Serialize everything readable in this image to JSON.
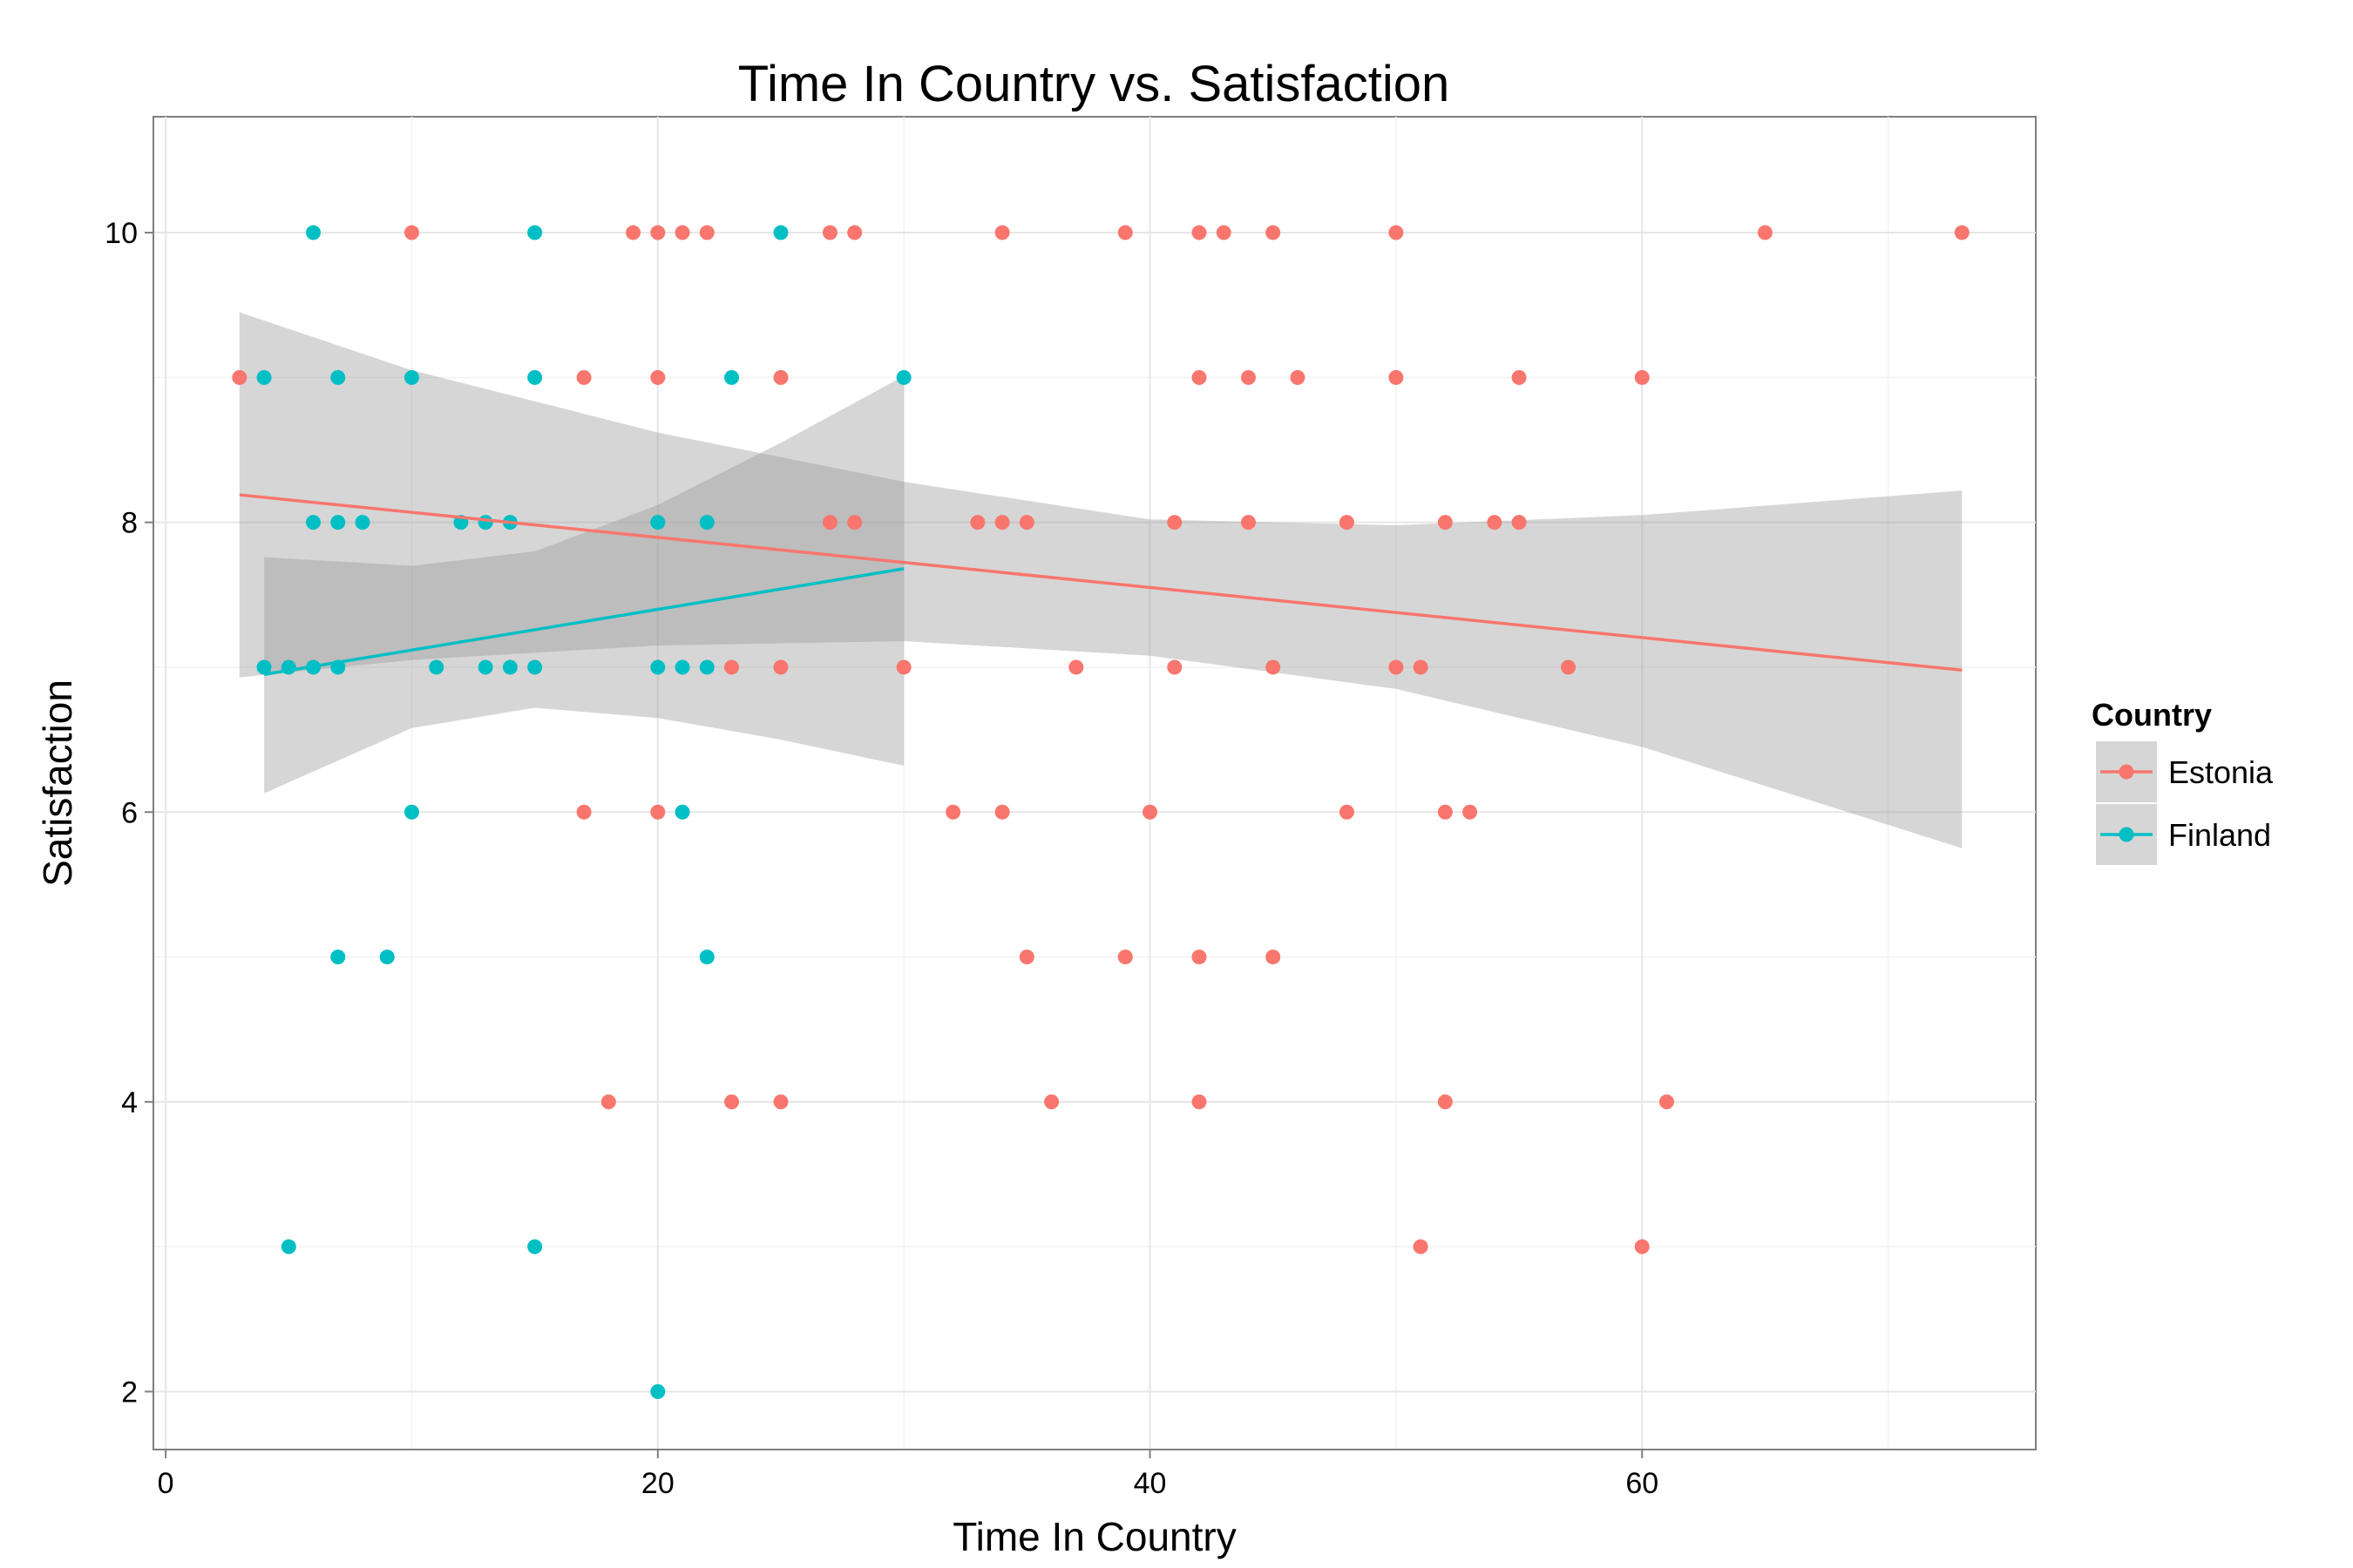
{
  "chart_data": {
    "type": "scatter",
    "title": "Time In Country vs. Satisfaction",
    "xlabel": "Time In Country",
    "ylabel": "Satisfaction",
    "xlim": [
      -0.5,
      76
    ],
    "ylim": [
      1.6,
      10.8
    ],
    "x_ticks": [
      0,
      20,
      40,
      60
    ],
    "y_ticks": [
      2,
      4,
      6,
      8,
      10
    ],
    "x_minor": [
      10,
      30,
      50,
      70
    ],
    "y_minor": [
      3,
      5,
      7,
      9
    ],
    "grid": true,
    "legend": {
      "title": "Country",
      "position": "right"
    },
    "series": [
      {
        "name": "Estonia",
        "color": "#F8766D",
        "points": [
          [
            3,
            9
          ],
          [
            10,
            10
          ],
          [
            17,
            9
          ],
          [
            20,
            9
          ],
          [
            19,
            10
          ],
          [
            20,
            10
          ],
          [
            21,
            10
          ],
          [
            22,
            10
          ],
          [
            25,
            9
          ],
          [
            27,
            10
          ],
          [
            28,
            10
          ],
          [
            34,
            10
          ],
          [
            39,
            10
          ],
          [
            42,
            10
          ],
          [
            43,
            10
          ],
          [
            45,
            10
          ],
          [
            50,
            10
          ],
          [
            65,
            10
          ],
          [
            73,
            10
          ],
          [
            42,
            9
          ],
          [
            44,
            9
          ],
          [
            46,
            9
          ],
          [
            50,
            9
          ],
          [
            55,
            9
          ],
          [
            60,
            9
          ],
          [
            27,
            8
          ],
          [
            28,
            8
          ],
          [
            33,
            8
          ],
          [
            34,
            8
          ],
          [
            35,
            8
          ],
          [
            41,
            8
          ],
          [
            44,
            8
          ],
          [
            48,
            8
          ],
          [
            52,
            8
          ],
          [
            54,
            8
          ],
          [
            55,
            8
          ],
          [
            23,
            7
          ],
          [
            25,
            7
          ],
          [
            30,
            7
          ],
          [
            37,
            7
          ],
          [
            41,
            7
          ],
          [
            45,
            7
          ],
          [
            50,
            7
          ],
          [
            51,
            7
          ],
          [
            57,
            7
          ],
          [
            17,
            6
          ],
          [
            20,
            6
          ],
          [
            32,
            6
          ],
          [
            34,
            6
          ],
          [
            40,
            6
          ],
          [
            48,
            6
          ],
          [
            52,
            6
          ],
          [
            53,
            6
          ],
          [
            35,
            5
          ],
          [
            39,
            5
          ],
          [
            42,
            5
          ],
          [
            45,
            5
          ],
          [
            18,
            4
          ],
          [
            23,
            4
          ],
          [
            25,
            4
          ],
          [
            36,
            4
          ],
          [
            42,
            4
          ],
          [
            52,
            4
          ],
          [
            61,
            4
          ],
          [
            51,
            3
          ],
          [
            60,
            3
          ]
        ],
        "fit": {
          "x": [
            3,
            73
          ],
          "y": [
            8.19,
            6.98
          ]
        },
        "ci": {
          "x": [
            3,
            10,
            20,
            30,
            40,
            50,
            60,
            73
          ],
          "lower": [
            6.93,
            7.05,
            7.15,
            7.18,
            7.08,
            6.85,
            6.45,
            5.75
          ],
          "upper": [
            9.45,
            9.05,
            8.62,
            8.28,
            8.02,
            7.98,
            8.05,
            8.22
          ]
        }
      },
      {
        "name": "Finland",
        "color": "#00BFC4",
        "points": [
          [
            6,
            10
          ],
          [
            15,
            10
          ],
          [
            25,
            10
          ],
          [
            4,
            9
          ],
          [
            7,
            9
          ],
          [
            10,
            9
          ],
          [
            15,
            9
          ],
          [
            23,
            9
          ],
          [
            30,
            9
          ],
          [
            6,
            8
          ],
          [
            7,
            8
          ],
          [
            8,
            8
          ],
          [
            12,
            8
          ],
          [
            13,
            8
          ],
          [
            14,
            8
          ],
          [
            20,
            8
          ],
          [
            22,
            8
          ],
          [
            4,
            7
          ],
          [
            5,
            7
          ],
          [
            6,
            7
          ],
          [
            7,
            7
          ],
          [
            11,
            7
          ],
          [
            13,
            7
          ],
          [
            14,
            7
          ],
          [
            15,
            7
          ],
          [
            20,
            7
          ],
          [
            21,
            7
          ],
          [
            22,
            7
          ],
          [
            10,
            6
          ],
          [
            21,
            6
          ],
          [
            7,
            5
          ],
          [
            9,
            5
          ],
          [
            22,
            5
          ],
          [
            5,
            3
          ],
          [
            15,
            3
          ],
          [
            20,
            2
          ]
        ],
        "fit": {
          "x": [
            4,
            30
          ],
          "y": [
            6.95,
            7.68
          ]
        },
        "ci": {
          "x": [
            4,
            10,
            15,
            20,
            25,
            30
          ],
          "lower": [
            6.13,
            6.58,
            6.72,
            6.65,
            6.5,
            6.32
          ],
          "upper": [
            7.76,
            7.7,
            7.8,
            8.12,
            8.55,
            9.01
          ]
        }
      }
    ]
  }
}
